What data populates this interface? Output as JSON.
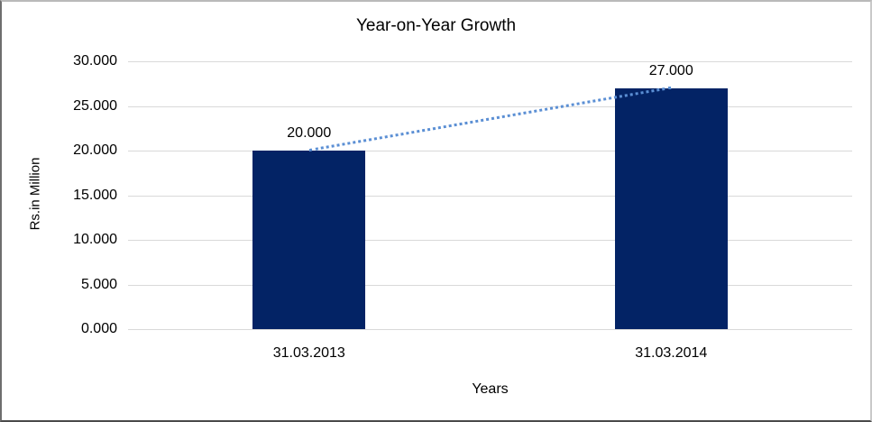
{
  "chart_data": {
    "type": "bar",
    "title": "Year-on-Year Growth",
    "categories": [
      "31.03.2013",
      "31.03.2014"
    ],
    "values": [
      20.0,
      27.0
    ],
    "data_labels": [
      "20.000",
      "27.000"
    ],
    "xlabel": "Years",
    "ylabel": "Rs.in Million",
    "ylim": [
      0,
      30
    ],
    "ytick_values": [
      30,
      25,
      20,
      15,
      10,
      5,
      0
    ],
    "ytick_labels": [
      "30.000",
      "25.000",
      "20.000",
      "15.000",
      "10.000",
      "5.000",
      "0.000"
    ],
    "grid": true,
    "legend": "none",
    "trendline": {
      "style": "dotted",
      "connects": "bar-top-centers",
      "color": "#5b8fd4"
    },
    "colors": {
      "bar": "#032365",
      "gridline": "#d9d9d9",
      "trendline": "#5b8fd4",
      "text": "#000000",
      "background": "#ffffff"
    }
  }
}
